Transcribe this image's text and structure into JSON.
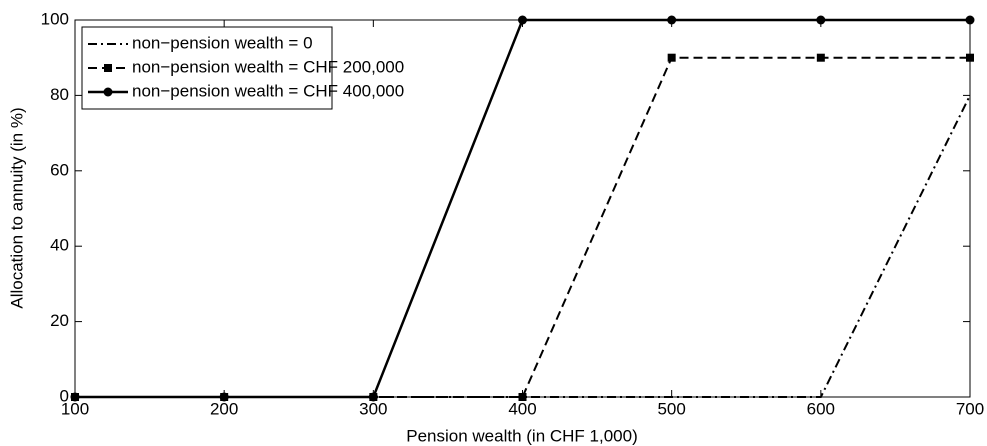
{
  "chart_data": {
    "type": "line",
    "x_label": "Pension wealth (in CHF 1,000)",
    "y_label": "Allocation to annuity (in %)",
    "x": [
      100,
      200,
      300,
      400,
      500,
      600,
      700
    ],
    "series": [
      {
        "name": "non−pension wealth = 0",
        "color": "#000000",
        "line_style": "dashdot",
        "marker": null,
        "values": [
          0,
          0,
          0,
          0,
          0,
          0,
          80
        ]
      },
      {
        "name": "non−pension wealth = CHF 200,000",
        "color": "#000000",
        "line_style": "dashed",
        "marker": "square",
        "values": [
          0,
          0,
          0,
          0,
          90,
          90,
          90
        ]
      },
      {
        "name": "non−pension wealth = CHF 400,000",
        "color": "#000000",
        "line_style": "solid",
        "marker": "circle",
        "values": [
          0,
          0,
          0,
          100,
          100,
          100,
          100
        ]
      }
    ],
    "xlim": [
      100,
      700
    ],
    "xticks": [
      100,
      200,
      300,
      400,
      500,
      600,
      700
    ],
    "ylim": [
      0,
      100
    ],
    "yticks": [
      0,
      20,
      40,
      60,
      80,
      100
    ],
    "grid": false,
    "legend": "upper left"
  }
}
